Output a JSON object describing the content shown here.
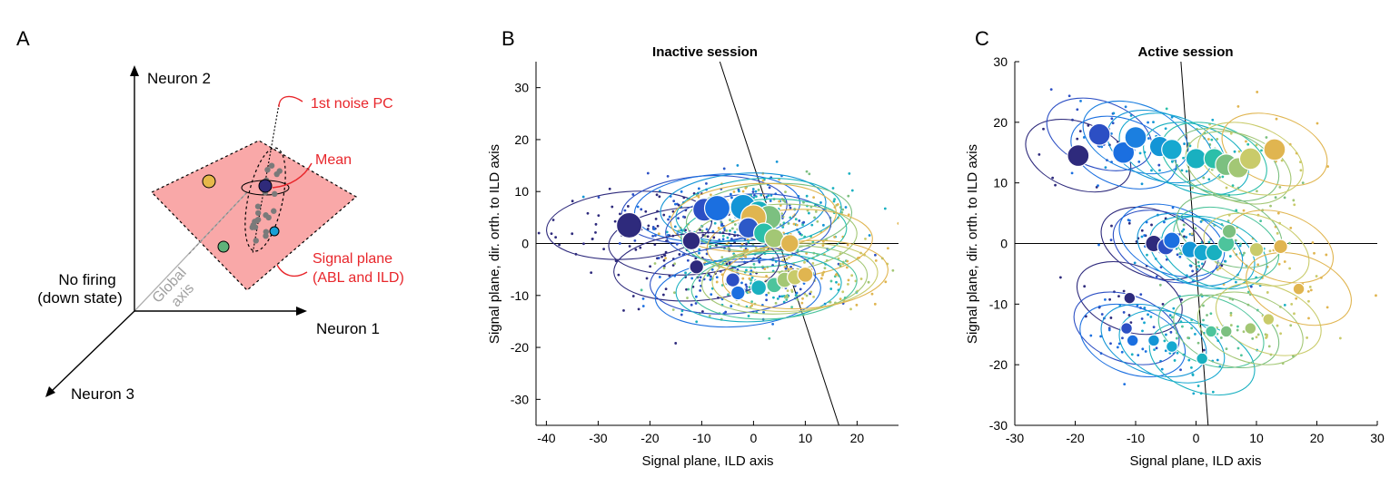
{
  "panel_a": {
    "letter": "A",
    "neuron1": "Neuron 1",
    "neuron2": "Neuron 2",
    "neuron3": "Neuron 3",
    "no_firing_1": "No firing",
    "no_firing_2": "(down state)",
    "global_1": "Global",
    "global_2": "axis",
    "noise_pc": "1st noise PC",
    "mean": "Mean",
    "signal_plane_1": "Signal plane",
    "signal_plane_2": "(ABL and ILD)",
    "colors": {
      "plane": "#f9a8a8",
      "annotation": "#e8262b",
      "mean": "#2f2a7a",
      "point_yellow": "#e6b84a",
      "point_green": "#5fb27a",
      "point_blue": "#1aa0d6"
    }
  },
  "chart_data": [
    {
      "type": "scatter",
      "panel": "B",
      "title": "Inactive session",
      "xlabel": "Signal plane, ILD axis",
      "ylabel": "Signal plane, dir. orth. to ILD axis",
      "xlim": [
        -42,
        28
      ],
      "ylim": [
        -35,
        35
      ],
      "xticks": [
        -40,
        -30,
        -20,
        -10,
        0,
        10,
        20
      ],
      "yticks": [
        -30,
        -20,
        -10,
        0,
        10,
        20,
        30
      ],
      "reference_line": {
        "x": [
          -6.5,
          16.5
        ],
        "y": [
          35,
          -35
        ]
      },
      "means": [
        {
          "x": -24,
          "y": 3.5,
          "c": "#2e2a7c",
          "s": 2
        },
        {
          "x": -12,
          "y": 0.5,
          "c": "#2e2a7c",
          "s": 1.4
        },
        {
          "x": -9.5,
          "y": 6.5,
          "c": "#2c4fc4",
          "s": 1.8
        },
        {
          "x": -7,
          "y": 6.8,
          "c": "#1b6fe0",
          "s": 2
        },
        {
          "x": -2,
          "y": 7,
          "c": "#1395d6",
          "s": 2
        },
        {
          "x": 1,
          "y": 6,
          "c": "#19b0c0",
          "s": 1.8
        },
        {
          "x": 3,
          "y": 5,
          "c": "#7cc080",
          "s": 1.9
        },
        {
          "x": 0,
          "y": 5,
          "c": "#e0b550",
          "s": 2
        },
        {
          "x": -1,
          "y": 3,
          "c": "#2d59c8",
          "s": 1.6
        },
        {
          "x": 2,
          "y": 2,
          "c": "#2bbfa9",
          "s": 1.6
        },
        {
          "x": 4,
          "y": 1,
          "c": "#a3c775",
          "s": 1.5
        },
        {
          "x": 7,
          "y": 0,
          "c": "#e0b550",
          "s": 1.4
        },
        {
          "x": -11,
          "y": -4.5,
          "c": "#2e2a7c",
          "s": 1.1
        },
        {
          "x": -4,
          "y": -7,
          "c": "#2c4fc4",
          "s": 1.1
        },
        {
          "x": -3,
          "y": -9.5,
          "c": "#1b6fe0",
          "s": 1.1
        },
        {
          "x": 1,
          "y": -8.5,
          "c": "#19b0c0",
          "s": 1.2
        },
        {
          "x": 4,
          "y": -8,
          "c": "#4dc49c",
          "s": 1.2
        },
        {
          "x": 6,
          "y": -7,
          "c": "#a3c775",
          "s": 1.2
        },
        {
          "x": 8,
          "y": -6.5,
          "c": "#c9cb6a",
          "s": 1.2
        },
        {
          "x": 10,
          "y": -6,
          "c": "#e0b550",
          "s": 1.2
        }
      ]
    },
    {
      "type": "scatter",
      "panel": "C",
      "title": "Active session",
      "xlabel": "Signal plane, ILD axis",
      "ylabel": "Signal plane, dir. orth. to ILD axis",
      "xlim": [
        -30,
        30
      ],
      "ylim": [
        -30,
        30
      ],
      "xticks": [
        -30,
        -20,
        -10,
        0,
        10,
        20,
        30
      ],
      "yticks": [
        -30,
        -20,
        -10,
        0,
        10,
        20,
        30
      ],
      "reference_line": {
        "x": [
          -2.5,
          2
        ],
        "y": [
          30,
          -30
        ]
      },
      "means": [
        {
          "x": -19.5,
          "y": 14.5,
          "c": "#2e2a7c",
          "s": 1.7
        },
        {
          "x": -16,
          "y": 18,
          "c": "#2c4fc4",
          "s": 1.7
        },
        {
          "x": -12,
          "y": 15,
          "c": "#1b6fe0",
          "s": 1.7
        },
        {
          "x": -10,
          "y": 17.5,
          "c": "#1b7fe0",
          "s": 1.7
        },
        {
          "x": -6,
          "y": 16,
          "c": "#1395d6",
          "s": 1.6
        },
        {
          "x": -4,
          "y": 15.5,
          "c": "#16a8d0",
          "s": 1.6
        },
        {
          "x": 0,
          "y": 14,
          "c": "#19b0c0",
          "s": 1.6
        },
        {
          "x": 3,
          "y": 14,
          "c": "#2bbfa9",
          "s": 1.6
        },
        {
          "x": 5,
          "y": 13,
          "c": "#7cc080",
          "s": 1.7
        },
        {
          "x": 7,
          "y": 12.5,
          "c": "#a3c775",
          "s": 1.6
        },
        {
          "x": 9,
          "y": 14,
          "c": "#c9cb6a",
          "s": 1.7
        },
        {
          "x": 13,
          "y": 15.5,
          "c": "#e0b550",
          "s": 1.7
        },
        {
          "x": -7,
          "y": 0,
          "c": "#2e2a7c",
          "s": 1.3
        },
        {
          "x": -5,
          "y": -0.5,
          "c": "#2c4fc4",
          "s": 1.3
        },
        {
          "x": -4,
          "y": 0.5,
          "c": "#1b6fe0",
          "s": 1.3
        },
        {
          "x": -1,
          "y": -1,
          "c": "#1395d6",
          "s": 1.3
        },
        {
          "x": 1,
          "y": -1.5,
          "c": "#16a8d0",
          "s": 1.3
        },
        {
          "x": 3,
          "y": -1.5,
          "c": "#19b0c0",
          "s": 1.3
        },
        {
          "x": 5,
          "y": 0,
          "c": "#4dc49c",
          "s": 1.3
        },
        {
          "x": 5.5,
          "y": 2,
          "c": "#7cc080",
          "s": 1.1
        },
        {
          "x": 10,
          "y": -1,
          "c": "#c9cb6a",
          "s": 1.1
        },
        {
          "x": 14,
          "y": -0.5,
          "c": "#e0b550",
          "s": 1.1
        },
        {
          "x": -11,
          "y": -9,
          "c": "#2e2a7c",
          "s": 0.9
        },
        {
          "x": -11.5,
          "y": -14,
          "c": "#2c4fc4",
          "s": 0.9
        },
        {
          "x": -10.5,
          "y": -16,
          "c": "#1b6fe0",
          "s": 0.9
        },
        {
          "x": -7,
          "y": -16,
          "c": "#1395d6",
          "s": 0.9
        },
        {
          "x": -4,
          "y": -17,
          "c": "#16a8d0",
          "s": 0.9
        },
        {
          "x": 1,
          "y": -19,
          "c": "#19b0c0",
          "s": 0.9
        },
        {
          "x": 2.5,
          "y": -14.5,
          "c": "#4dc49c",
          "s": 0.9
        },
        {
          "x": 5,
          "y": -14.5,
          "c": "#7cc080",
          "s": 0.9
        },
        {
          "x": 9,
          "y": -14,
          "c": "#a3c775",
          "s": 0.9
        },
        {
          "x": 12,
          "y": -12.5,
          "c": "#c9cb6a",
          "s": 0.9
        },
        {
          "x": 17,
          "y": -7.5,
          "c": "#e0b550",
          "s": 0.9
        }
      ]
    }
  ]
}
